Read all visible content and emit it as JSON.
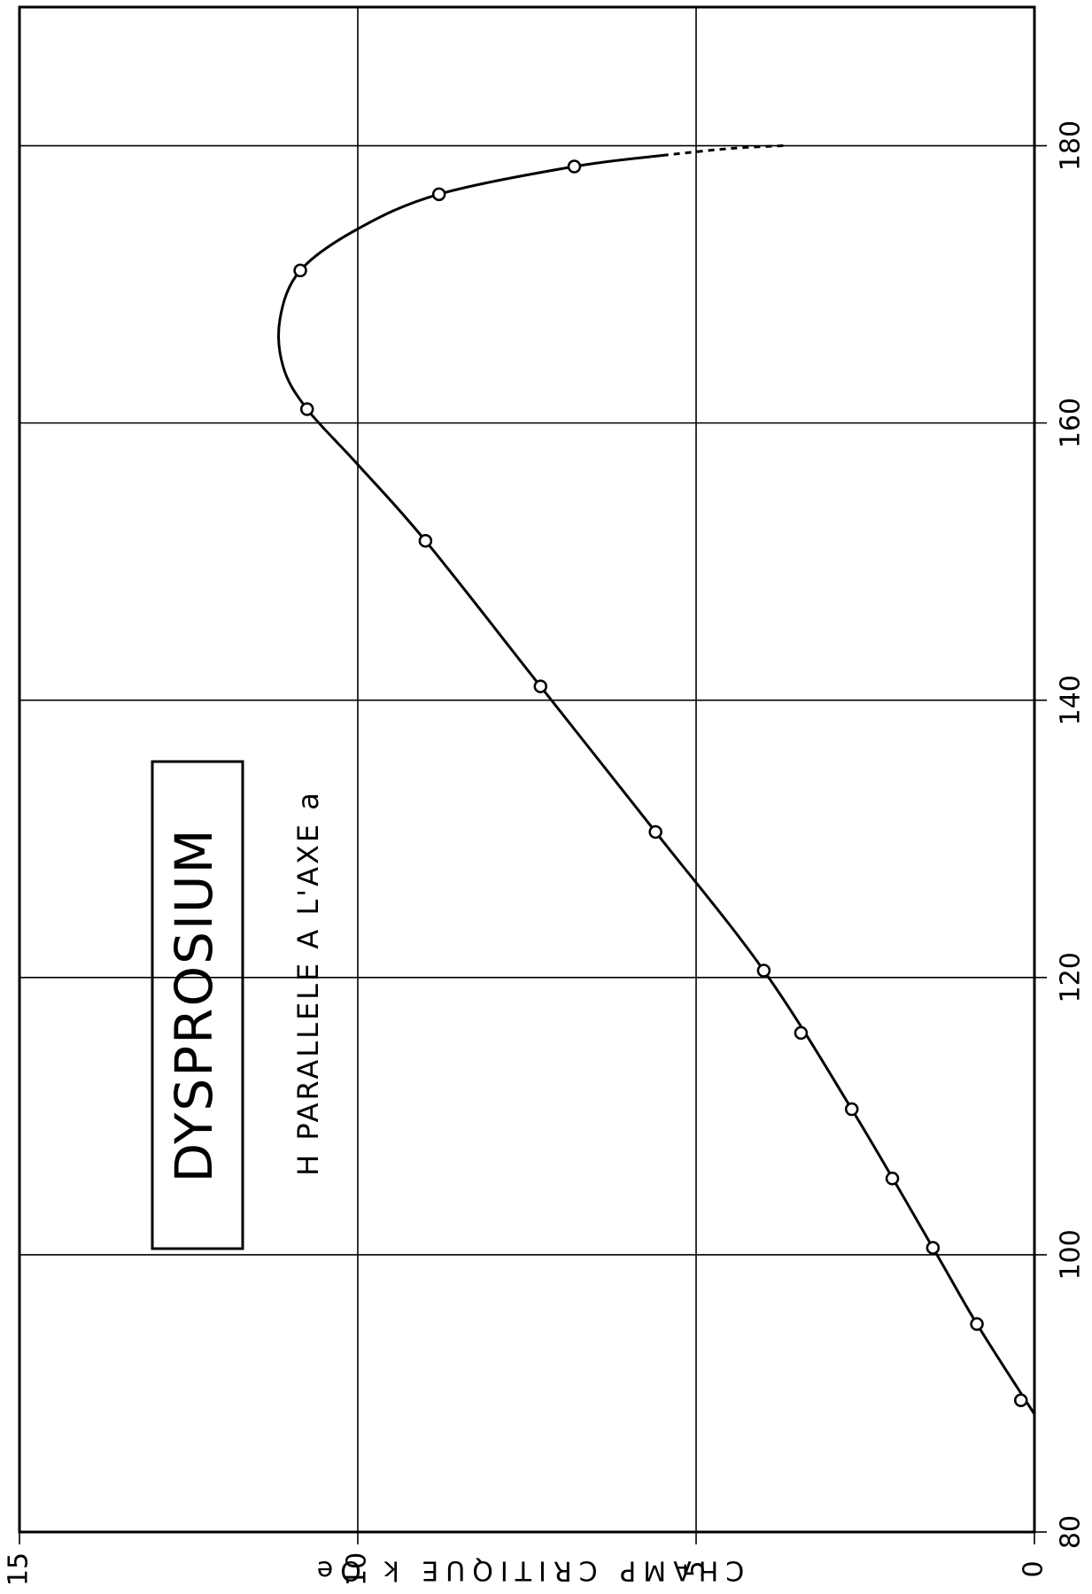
{
  "chart_data": {
    "type": "line",
    "orientation": "rotated 90deg counter-clockwise (temperature axis along right edge, field axis along bottom edge)",
    "title": "DYSPROSIUM",
    "subtitle": "H PARALLELE  A L'AXE a",
    "xlabel": "",
    "ylabel": "CHAMP  CRITIQUE  k Oe",
    "xlim": [
      80,
      190
    ],
    "ylim": [
      0,
      15
    ],
    "x_ticks": [
      "80",
      "100",
      "120",
      "140",
      "160",
      "180"
    ],
    "y_ticks": [
      "0",
      "5",
      "10",
      "15"
    ],
    "grid": true,
    "series": [
      {
        "points": [
          {
            "x": 89.5,
            "y": 0.2
          },
          {
            "x": 95.0,
            "y": 0.85
          },
          {
            "x": 100.5,
            "y": 1.5
          },
          {
            "x": 105.5,
            "y": 2.1
          },
          {
            "x": 110.5,
            "y": 2.7
          },
          {
            "x": 116.0,
            "y": 3.45
          },
          {
            "x": 120.5,
            "y": 4.0
          },
          {
            "x": 130.5,
            "y": 5.6
          },
          {
            "x": 141.0,
            "y": 7.3
          },
          {
            "x": 151.5,
            "y": 9.0
          },
          {
            "x": 161.0,
            "y": 10.75
          },
          {
            "x": 171.0,
            "y": 10.85
          },
          {
            "x": 176.5,
            "y": 8.8
          },
          {
            "x": 178.5,
            "y": 6.8
          }
        ],
        "curve": [
          {
            "x": 88.5,
            "y": 0.0
          },
          {
            "x": 95.0,
            "y": 0.85
          },
          {
            "x": 100.5,
            "y": 1.5
          },
          {
            "x": 110.5,
            "y": 2.7
          },
          {
            "x": 120.5,
            "y": 4.0
          },
          {
            "x": 130.5,
            "y": 5.6
          },
          {
            "x": 141.0,
            "y": 7.3
          },
          {
            "x": 151.5,
            "y": 9.0
          },
          {
            "x": 157.0,
            "y": 10.0
          },
          {
            "x": 161.0,
            "y": 10.75
          },
          {
            "x": 164.0,
            "y": 11.1
          },
          {
            "x": 167.5,
            "y": 11.15
          },
          {
            "x": 171.0,
            "y": 10.85
          },
          {
            "x": 174.0,
            "y": 10.0
          },
          {
            "x": 176.5,
            "y": 8.8
          },
          {
            "x": 178.5,
            "y": 6.8
          },
          {
            "x": 179.3,
            "y": 5.5
          }
        ],
        "extrapolated": [
          {
            "x": 179.3,
            "y": 5.5
          },
          {
            "x": 179.8,
            "y": 4.5
          },
          {
            "x": 180.0,
            "y": 3.7
          }
        ]
      }
    ]
  }
}
